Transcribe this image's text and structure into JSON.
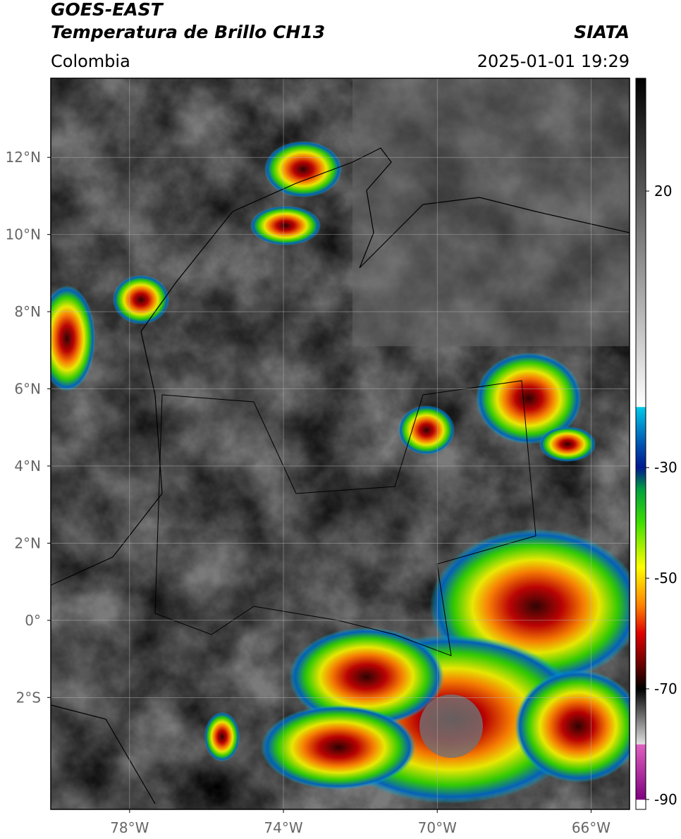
{
  "header": {
    "title": "GOES-EAST",
    "subtitle": "Temperatura de Brillo CH13",
    "source": "SIATA",
    "region": "Colombia",
    "datetime": "2025-01-01 19:29"
  },
  "map": {
    "lon_range": [
      -80.05,
      -65.0
    ],
    "lat_range": [
      -4.9,
      14.05
    ],
    "lon_ticks": [
      {
        "value": -78,
        "label": "78°W"
      },
      {
        "value": -74,
        "label": "74°W"
      },
      {
        "value": -70,
        "label": "70°W"
      },
      {
        "value": -66,
        "label": "66°W"
      }
    ],
    "lat_ticks": [
      {
        "value": 12,
        "label": "12°N"
      },
      {
        "value": 10,
        "label": "10°N"
      },
      {
        "value": 8,
        "label": "8°N"
      },
      {
        "value": 6,
        "label": "6°N"
      },
      {
        "value": 4,
        "label": "4°N"
      },
      {
        "value": 2,
        "label": "2°N"
      },
      {
        "value": 0,
        "label": "0°"
      },
      {
        "value": -2,
        "label": "2°S"
      }
    ]
  },
  "colorbar": {
    "range": [
      -91.8,
      40.4
    ],
    "ticks": [
      20,
      -30,
      -50,
      -70,
      -90
    ],
    "stops": [
      [
        40.4,
        "#000000"
      ],
      [
        -19,
        "#ffffff"
      ],
      [
        -19.1,
        "#00c8e8"
      ],
      [
        -26,
        "#0050b0"
      ],
      [
        -30,
        "#001890"
      ],
      [
        -34,
        "#00a040"
      ],
      [
        -40,
        "#40e000"
      ],
      [
        -48,
        "#ffff00"
      ],
      [
        -55,
        "#ff8000"
      ],
      [
        -60,
        "#e00000"
      ],
      [
        -66,
        "#600000"
      ],
      [
        -70,
        "#000000"
      ],
      [
        -80,
        "#e0e0e0"
      ],
      [
        -80.1,
        "#e060c0"
      ],
      [
        -90,
        "#800080"
      ],
      [
        -90.1,
        "#ffffff"
      ]
    ]
  }
}
